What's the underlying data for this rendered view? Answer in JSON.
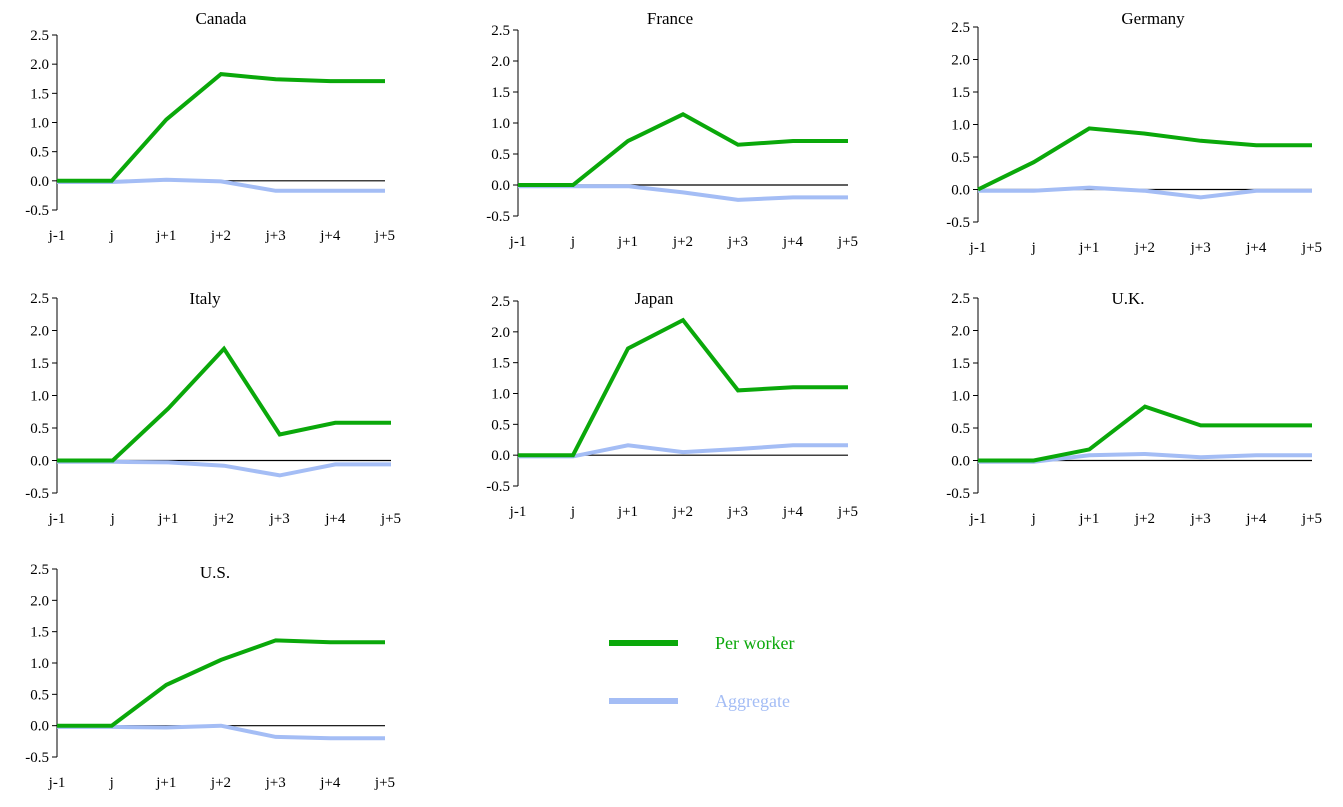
{
  "chart_data": [
    {
      "type": "line",
      "title": "Canada",
      "categories": [
        "j-1",
        "j",
        "j+1",
        "j+2",
        "j+3",
        "j+4",
        "j+5"
      ],
      "ylim": [
        -0.5,
        2.5
      ],
      "yticks": [
        "2.5",
        "2.0",
        "1.5",
        "1.0",
        "0.5",
        "0.0",
        "-0.5"
      ],
      "series": [
        {
          "name": "Per worker",
          "values": [
            0.0,
            0.0,
            1.05,
            1.83,
            1.74,
            1.71,
            1.71
          ]
        },
        {
          "name": "Aggregate",
          "values": [
            -0.02,
            -0.02,
            0.02,
            -0.01,
            -0.17,
            -0.17,
            -0.17
          ]
        }
      ]
    },
    {
      "type": "line",
      "title": "France",
      "categories": [
        "j-1",
        "j",
        "j+1",
        "j+2",
        "j+3",
        "j+4",
        "j+5"
      ],
      "ylim": [
        -0.5,
        2.5
      ],
      "yticks": [
        "2.5",
        "2.0",
        "1.5",
        "1.0",
        "0.5",
        "0.0",
        "-0.5"
      ],
      "series": [
        {
          "name": "Per worker",
          "values": [
            0.0,
            0.0,
            0.71,
            1.14,
            0.65,
            0.71,
            0.71
          ]
        },
        {
          "name": "Aggregate",
          "values": [
            -0.02,
            -0.02,
            -0.02,
            -0.12,
            -0.24,
            -0.2,
            -0.2
          ]
        }
      ]
    },
    {
      "type": "line",
      "title": "Germany",
      "categories": [
        "j-1",
        "j",
        "j+1",
        "j+2",
        "j+3",
        "j+4",
        "j+5"
      ],
      "ylim": [
        -0.5,
        2.5
      ],
      "yticks": [
        "2.5",
        "2.0",
        "1.5",
        "1.0",
        "0.5",
        "0.0",
        "-0.5"
      ],
      "series": [
        {
          "name": "Per worker",
          "values": [
            0.0,
            0.42,
            0.94,
            0.86,
            0.75,
            0.68,
            0.68
          ]
        },
        {
          "name": "Aggregate",
          "values": [
            -0.02,
            -0.02,
            0.03,
            -0.02,
            -0.12,
            -0.02,
            -0.02
          ]
        }
      ]
    },
    {
      "type": "line",
      "title": "Italy",
      "categories": [
        "j-1",
        "j",
        "j+1",
        "j+2",
        "j+3",
        "j+4",
        "j+5"
      ],
      "ylim": [
        -0.5,
        2.5
      ],
      "yticks": [
        "2.5",
        "2.0",
        "1.5",
        "1.0",
        "0.5",
        "0.0",
        "-0.5"
      ],
      "series": [
        {
          "name": "Per worker",
          "values": [
            0.0,
            0.0,
            0.8,
            1.72,
            0.4,
            0.58,
            0.58
          ]
        },
        {
          "name": "Aggregate",
          "values": [
            -0.02,
            -0.02,
            -0.03,
            -0.08,
            -0.23,
            -0.06,
            -0.06
          ]
        }
      ]
    },
    {
      "type": "line",
      "title": "Japan",
      "categories": [
        "j-1",
        "j",
        "j+1",
        "j+2",
        "j+3",
        "j+4",
        "j+5"
      ],
      "ylim": [
        -0.5,
        2.5
      ],
      "yticks": [
        "2.5",
        "2.0",
        "1.5",
        "1.0",
        "0.5",
        "0.0",
        "-0.5"
      ],
      "series": [
        {
          "name": "Per worker",
          "values": [
            0.0,
            0.0,
            1.73,
            2.19,
            1.05,
            1.1,
            1.1
          ]
        },
        {
          "name": "Aggregate",
          "values": [
            -0.02,
            -0.02,
            0.16,
            0.05,
            0.1,
            0.16,
            0.16
          ]
        }
      ]
    },
    {
      "type": "line",
      "title": "U.K.",
      "categories": [
        "j-1",
        "j",
        "j+1",
        "j+2",
        "j+3",
        "j+4",
        "j+5"
      ],
      "ylim": [
        -0.5,
        2.5
      ],
      "yticks": [
        "2.5",
        "2.0",
        "1.5",
        "1.0",
        "0.5",
        "0.0",
        "-0.5"
      ],
      "series": [
        {
          "name": "Per worker",
          "values": [
            0.0,
            0.0,
            0.17,
            0.83,
            0.54,
            0.54,
            0.54
          ]
        },
        {
          "name": "Aggregate",
          "values": [
            -0.02,
            -0.02,
            0.08,
            0.1,
            0.05,
            0.08,
            0.08
          ]
        }
      ]
    },
    {
      "type": "line",
      "title": "U.S.",
      "categories": [
        "j-1",
        "j",
        "j+1",
        "j+2",
        "j+3",
        "j+4",
        "j+5"
      ],
      "ylim": [
        -0.5,
        2.5
      ],
      "yticks": [
        "2.5",
        "2.0",
        "1.5",
        "1.0",
        "0.5",
        "0.0",
        "-0.5"
      ],
      "series": [
        {
          "name": "Per worker",
          "values": [
            0.0,
            0.0,
            0.65,
            1.05,
            1.36,
            1.33,
            1.33
          ]
        },
        {
          "name": "Aggregate",
          "values": [
            -0.02,
            -0.02,
            -0.03,
            0.0,
            -0.18,
            -0.2,
            -0.2
          ]
        }
      ]
    }
  ],
  "legend": {
    "placement": "bottom-right",
    "items": [
      {
        "label": "Per worker",
        "color": "#0aa80a"
      },
      {
        "label": "Aggregate",
        "color": "#a4bdf5"
      }
    ]
  },
  "colors": {
    "per_worker": "#0aa80a",
    "aggregate": "#a4bdf5",
    "axis": "#000000"
  }
}
